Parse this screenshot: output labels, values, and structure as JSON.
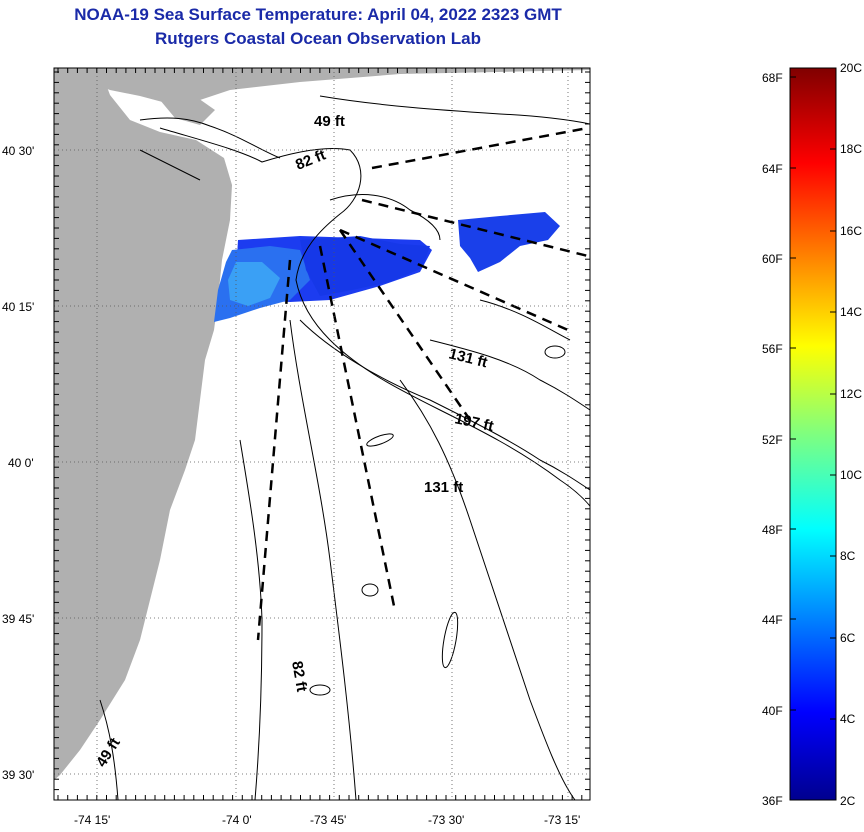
{
  "title": {
    "line1": "NOAA-19 Sea Surface Temperature:  April 04, 2022 2323 GMT",
    "line2": "Rutgers Coastal Ocean Observation Lab"
  },
  "map": {
    "lat_labels": [
      "40 30'",
      "40 15'",
      "40 0'",
      "39 45'",
      "39 30'"
    ],
    "lon_labels": [
      "-74 15'",
      "-74 0'",
      "-73 45'",
      "-73 30'",
      "-73 15'"
    ],
    "depth_labels": [
      "49 ft",
      "82 ft",
      "131 ft",
      "197 ft",
      "131 ft",
      "82 ft",
      "49 ft"
    ],
    "land_color": "#b0b0b0",
    "grid": true
  },
  "colorbar": {
    "fahrenheit_labels": [
      "68F",
      "64F",
      "60F",
      "56F",
      "52F",
      "48F",
      "44F",
      "40F",
      "36F"
    ],
    "celsius_labels": [
      "20C",
      "18C",
      "16C",
      "14C",
      "12C",
      "10C",
      "8C",
      "6C",
      "4C",
      "2C"
    ],
    "range_c": [
      2,
      20
    ]
  }
}
